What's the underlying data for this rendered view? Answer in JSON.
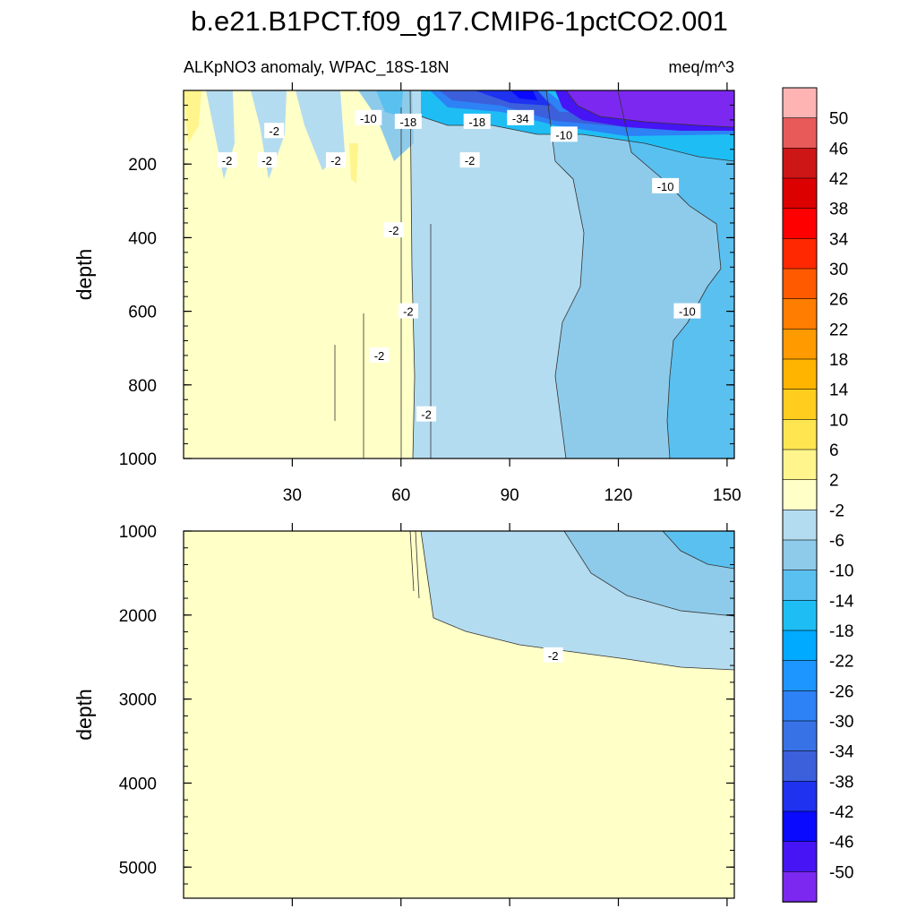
{
  "chart_data": {
    "type": "heatmap",
    "title": "b.e21.B1PCT.f09_g17.CMIP6-1pctCO2.001",
    "subtitle_left": "ALKpNO3 anomaly, WPAC_18S-18N",
    "subtitle_right": "meq/m^3",
    "x_range": [
      0,
      152
    ],
    "x_ticks": [
      30,
      60,
      90,
      120,
      150
    ],
    "x_tick_labels": [
      "30",
      "60",
      "90",
      "120",
      "150"
    ],
    "panels": [
      {
        "name": "upper",
        "ylabel": "depth",
        "y_range": [
          0,
          1000
        ],
        "y_ticks": [
          200,
          400,
          600,
          800,
          1000
        ],
        "y_tick_labels": [
          "200",
          "400",
          "600",
          "800",
          "1000"
        ],
        "regions": [
          {
            "label": "near-zero (-2..2)",
            "x": [
              0,
              62
            ],
            "value": 0
          },
          {
            "label": "-2..-6",
            "x": [
              62,
              105
            ],
            "value": -4
          },
          {
            "label": "-6..-10",
            "x": [
              105,
              135
            ],
            "value": -8
          },
          {
            "label": "-10..-14",
            "x": [
              135,
              152
            ],
            "value": -12
          },
          {
            "label": "surface minimum",
            "x": [
              105,
              152
            ],
            "depth": [
              0,
              90
            ],
            "value": -52
          }
        ],
        "contour_labels": [
          {
            "text": "-2",
            "x": 12,
            "y": 190
          },
          {
            "text": "-2",
            "x": 25,
            "y": 110
          },
          {
            "text": "-2",
            "x": 23,
            "y": 190
          },
          {
            "text": "-2",
            "x": 42,
            "y": 190
          },
          {
            "text": "-10",
            "x": 51,
            "y": 75
          },
          {
            "text": "-18",
            "x": 62,
            "y": 85
          },
          {
            "text": "-18",
            "x": 81,
            "y": 85
          },
          {
            "text": "-34",
            "x": 93,
            "y": 75
          },
          {
            "text": "-10",
            "x": 105,
            "y": 120
          },
          {
            "text": "-2",
            "x": 79,
            "y": 190
          },
          {
            "text": "-10",
            "x": 133,
            "y": 260
          },
          {
            "text": "-2",
            "x": 58,
            "y": 380
          },
          {
            "text": "-2",
            "x": 62,
            "y": 600
          },
          {
            "text": "-10",
            "x": 139,
            "y": 600
          },
          {
            "text": "-2",
            "x": 54,
            "y": 720
          },
          {
            "text": "-2",
            "x": 67,
            "y": 880
          }
        ]
      },
      {
        "name": "lower",
        "ylabel": "depth",
        "y_range": [
          1000,
          5370
        ],
        "y_ticks": [
          1000,
          2000,
          3000,
          4000,
          5000
        ],
        "y_tick_labels": [
          "1000",
          "2000",
          "3000",
          "4000",
          "5000"
        ],
        "regions": [
          {
            "label": "near-zero (-2..2)",
            "value": 0
          },
          {
            "label": "-2..-6",
            "x": [
              68,
              152
            ],
            "depth": [
              1000,
              2650
            ],
            "value": -4
          },
          {
            "label": "-6..-10",
            "x": [
              104,
              152
            ],
            "depth": [
              1000,
              2000
            ],
            "value": -8
          },
          {
            "label": "-10..-14",
            "x": [
              133,
              152
            ],
            "depth": [
              1000,
              1450
            ],
            "value": -12
          }
        ],
        "contour_labels": [
          {
            "text": "-2",
            "x": 102,
            "y": 2480
          }
        ]
      }
    ],
    "colorbar": {
      "labels": [
        "50",
        "46",
        "42",
        "38",
        "34",
        "30",
        "26",
        "22",
        "18",
        "14",
        "10",
        "6",
        "2",
        "-2",
        "-6",
        "-10",
        "-14",
        "-18",
        "-22",
        "-26",
        "-30",
        "-34",
        "-38",
        "-42",
        "-46",
        "-50"
      ],
      "colors": [
        "#ffb4b4",
        "#e85a5a",
        "#cd1616",
        "#dd0000",
        "#ff0000",
        "#ff2800",
        "#ff5a00",
        "#ff7d00",
        "#ff9a00",
        "#ffb400",
        "#ffcd1e",
        "#ffe650",
        "#fff58c",
        "#ffffc8",
        "#b4dcf0",
        "#8ecbea",
        "#5ac0f0",
        "#1ebef5",
        "#00aaff",
        "#1e96ff",
        "#2d82f5",
        "#3773e6",
        "#3c5fdc",
        "#1e32f0",
        "#0a0aff",
        "#4614f5",
        "#7d28f0"
      ]
    }
  }
}
